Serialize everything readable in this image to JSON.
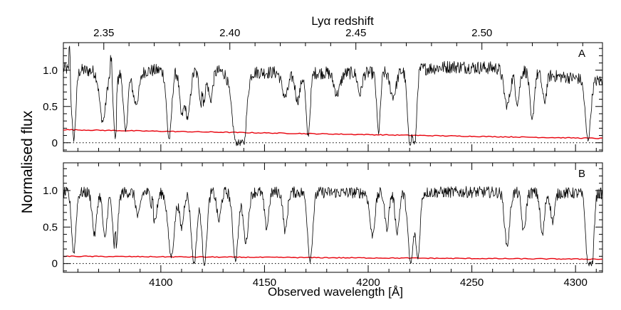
{
  "figure": {
    "top_axis_label": "Lyα redshift",
    "x_label": "Observed wavelength [Å]",
    "y_label": "Normalised flux",
    "colors": {
      "flux": "#000000",
      "error": "#e8000b",
      "zero_line": "#000000"
    }
  },
  "chart_data": {
    "type": "line",
    "xlim": [
      4053,
      4313
    ],
    "ylim": [
      -0.12,
      1.38
    ],
    "x_ticks": [
      4100,
      4150,
      4200,
      4250,
      4300
    ],
    "x_tick_labels": [
      "4100",
      "4150",
      "4200",
      "4250",
      "4300"
    ],
    "y_ticks": [
      0,
      0.5,
      1.0
    ],
    "y_tick_labels": [
      "0",
      "0.5",
      "1.0"
    ],
    "top_ticks": [
      2.35,
      2.4,
      2.45,
      2.5
    ],
    "top_tick_labels": [
      "2.35",
      "2.40",
      "2.45",
      "2.50"
    ],
    "lya_rest_wavelength": 1215.67,
    "zero_line": 0,
    "grid": false,
    "panels": [
      {
        "label": "A",
        "continuum": [
          [
            4053,
            1.02
          ],
          [
            4075,
            0.97
          ],
          [
            4100,
            1.0
          ],
          [
            4150,
            0.97
          ],
          [
            4200,
            0.96
          ],
          [
            4240,
            1.05
          ],
          [
            4270,
            1.02
          ],
          [
            4290,
            0.92
          ],
          [
            4313,
            0.85
          ]
        ],
        "noise": 0.09,
        "error": {
          "start": 0.18,
          "end": 0.06
        },
        "absorption": [
          [
            4058,
            0.95,
            1.0
          ],
          [
            4072,
            0.7,
            1.5
          ],
          [
            4078,
            0.95,
            0.8
          ],
          [
            4083,
            0.85,
            1.0
          ],
          [
            4088,
            0.45,
            1.5
          ],
          [
            4104,
            0.95,
            1.2
          ],
          [
            4110,
            0.6,
            1.0
          ],
          [
            4113,
            0.65,
            1.2
          ],
          [
            4120,
            0.55,
            1.2
          ],
          [
            4124,
            0.4,
            1.0
          ],
          [
            4136.5,
            1.0,
            2.2
          ],
          [
            4140,
            0.8,
            1.5
          ],
          [
            4160,
            0.35,
            1.5
          ],
          [
            4166,
            0.4,
            1.2
          ],
          [
            4171,
            0.9,
            1.0
          ],
          [
            4185,
            0.3,
            1.5
          ],
          [
            4196,
            0.3,
            1.0
          ],
          [
            4205,
            0.85,
            0.9
          ],
          [
            4212,
            0.35,
            1.5
          ],
          [
            4220,
            1.0,
            1.1
          ],
          [
            4222.5,
            1.0,
            0.9
          ],
          [
            4267,
            0.5,
            1.5
          ],
          [
            4272,
            0.45,
            1.0
          ],
          [
            4279,
            0.7,
            1.0
          ],
          [
            4285,
            0.4,
            1.0
          ],
          [
            4306,
            0.95,
            1.3
          ]
        ],
        "spikes": [
          [
            4056,
            0.4
          ],
          [
            4076,
            0.25
          ],
          [
            4079,
            0.25
          ],
          [
            4120,
            0.25
          ]
        ]
      },
      {
        "label": "B",
        "continuum": [
          [
            4053,
            0.97
          ],
          [
            4100,
            0.98
          ],
          [
            4150,
            0.98
          ],
          [
            4200,
            0.97
          ],
          [
            4250,
            0.98
          ],
          [
            4313,
            0.96
          ]
        ],
        "noise": 0.08,
        "error": {
          "start": 0.1,
          "end": 0.06
        },
        "absorption": [
          [
            4058,
            0.85,
            1.0
          ],
          [
            4068,
            0.6,
            1.0
          ],
          [
            4073,
            0.65,
            1.0
          ],
          [
            4078,
            0.9,
            1.1
          ],
          [
            4089,
            0.35,
            1.0
          ],
          [
            4097,
            0.4,
            1.2
          ],
          [
            4105,
            0.9,
            1.5
          ],
          [
            4110,
            0.5,
            1.0
          ],
          [
            4116,
            1.0,
            1.3
          ],
          [
            4121,
            1.0,
            1.2
          ],
          [
            4128,
            0.4,
            1.0
          ],
          [
            4136,
            0.95,
            1.3
          ],
          [
            4141,
            0.7,
            1.2
          ],
          [
            4151,
            0.5,
            1.0
          ],
          [
            4160,
            0.55,
            1.0
          ],
          [
            4172,
            0.95,
            1.2
          ],
          [
            4202,
            0.6,
            1.2
          ],
          [
            4209,
            0.5,
            1.0
          ],
          [
            4214,
            0.55,
            1.0
          ],
          [
            4220.5,
            1.0,
            1.3
          ],
          [
            4224,
            0.9,
            1.0
          ],
          [
            4267,
            0.75,
            1.2
          ],
          [
            4275,
            0.55,
            1.0
          ],
          [
            4284,
            0.6,
            1.0
          ],
          [
            4289,
            0.4,
            1.0
          ],
          [
            4306,
            1.0,
            1.1
          ],
          [
            4308,
            0.95,
            0.9
          ]
        ],
        "spikes": [
          [
            4078,
            0.3
          ],
          [
            4096,
            0.2
          ]
        ]
      }
    ]
  }
}
